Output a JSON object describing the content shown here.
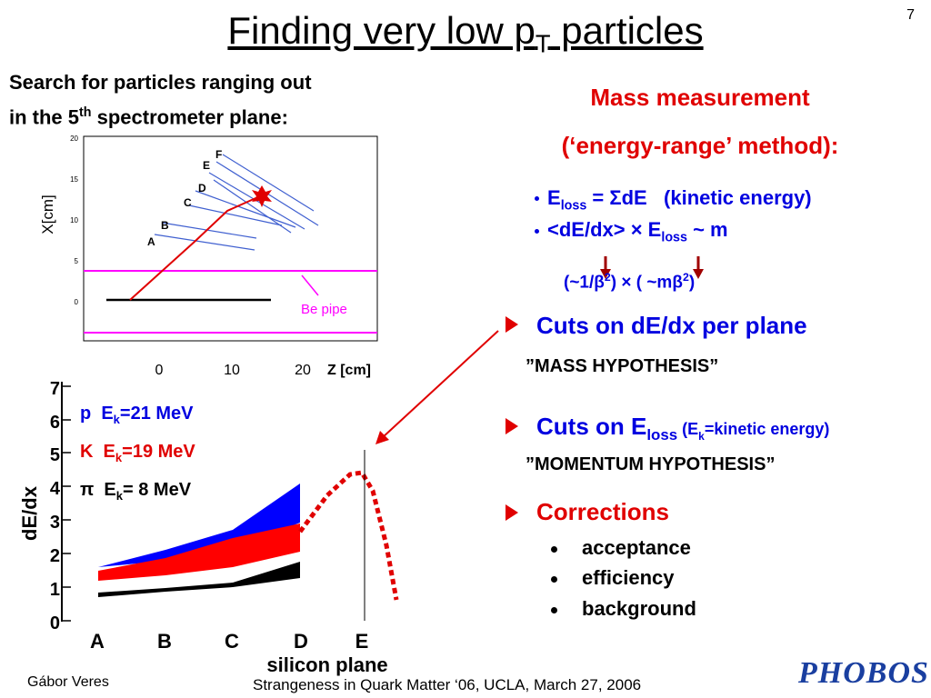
{
  "page_number": "7",
  "title": [
    "Finding very low p",
    "T",
    " particles"
  ],
  "intro": [
    "Search for particles ranging out",
    "in the 5",
    "th",
    " spectrometer plane:"
  ],
  "top_plot": {
    "yticks": [
      "20",
      "15",
      "10",
      "5",
      "0"
    ],
    "xticks": [
      "0",
      "10",
      "20"
    ],
    "xlabel": "Z [cm]",
    "ylabel": "X[cm]",
    "planes": [
      "A",
      "B",
      "C",
      "D",
      "E",
      "F"
    ],
    "annotation": "Be pipe"
  },
  "bottom_plot": {
    "yticks": [
      "0",
      "1",
      "2",
      "3",
      "4",
      "5",
      "6",
      "7"
    ],
    "ylabel": "dE/dx",
    "xticks": [
      "A",
      "B",
      "C",
      "D",
      "E"
    ],
    "xlabel": "silicon plane",
    "legend": [
      [
        "p  E",
        "k",
        "=21 MeV"
      ],
      [
        "K  E",
        "k",
        "=19 MeV"
      ],
      [
        "π  E",
        "k",
        "= 8 MeV"
      ]
    ]
  },
  "right": {
    "heading": [
      "Mass measurement",
      "(‘energy-range’ method):"
    ],
    "bullets": [
      [
        "E",
        "loss",
        " = ΣdE   (kinetic energy)"
      ],
      [
        "<dE/dx> × E",
        "loss",
        " ~ m"
      ]
    ],
    "formula": [
      "(~1/β",
      "2",
      ") × ( ~mβ",
      "2",
      ")"
    ],
    "cuts": [
      {
        "text": [
          "Cuts on dE/dx per plane"
        ],
        "note": "”MASS HYPOTHESIS”"
      },
      {
        "text": [
          "Cuts on E",
          "loss",
          " (E",
          "k",
          "=kinetic energy)"
        ],
        "note": "”MOMENTUM HYPOTHESIS”"
      }
    ],
    "corrections": {
      "title": "Corrections",
      "items": [
        "acceptance",
        "efficiency",
        "background"
      ]
    }
  },
  "footer": {
    "author": "Gábor Veres",
    "conference": "Strangeness in Quark Matter ‘06, UCLA, March 27, 2006",
    "logo": "PHOBOS"
  }
}
